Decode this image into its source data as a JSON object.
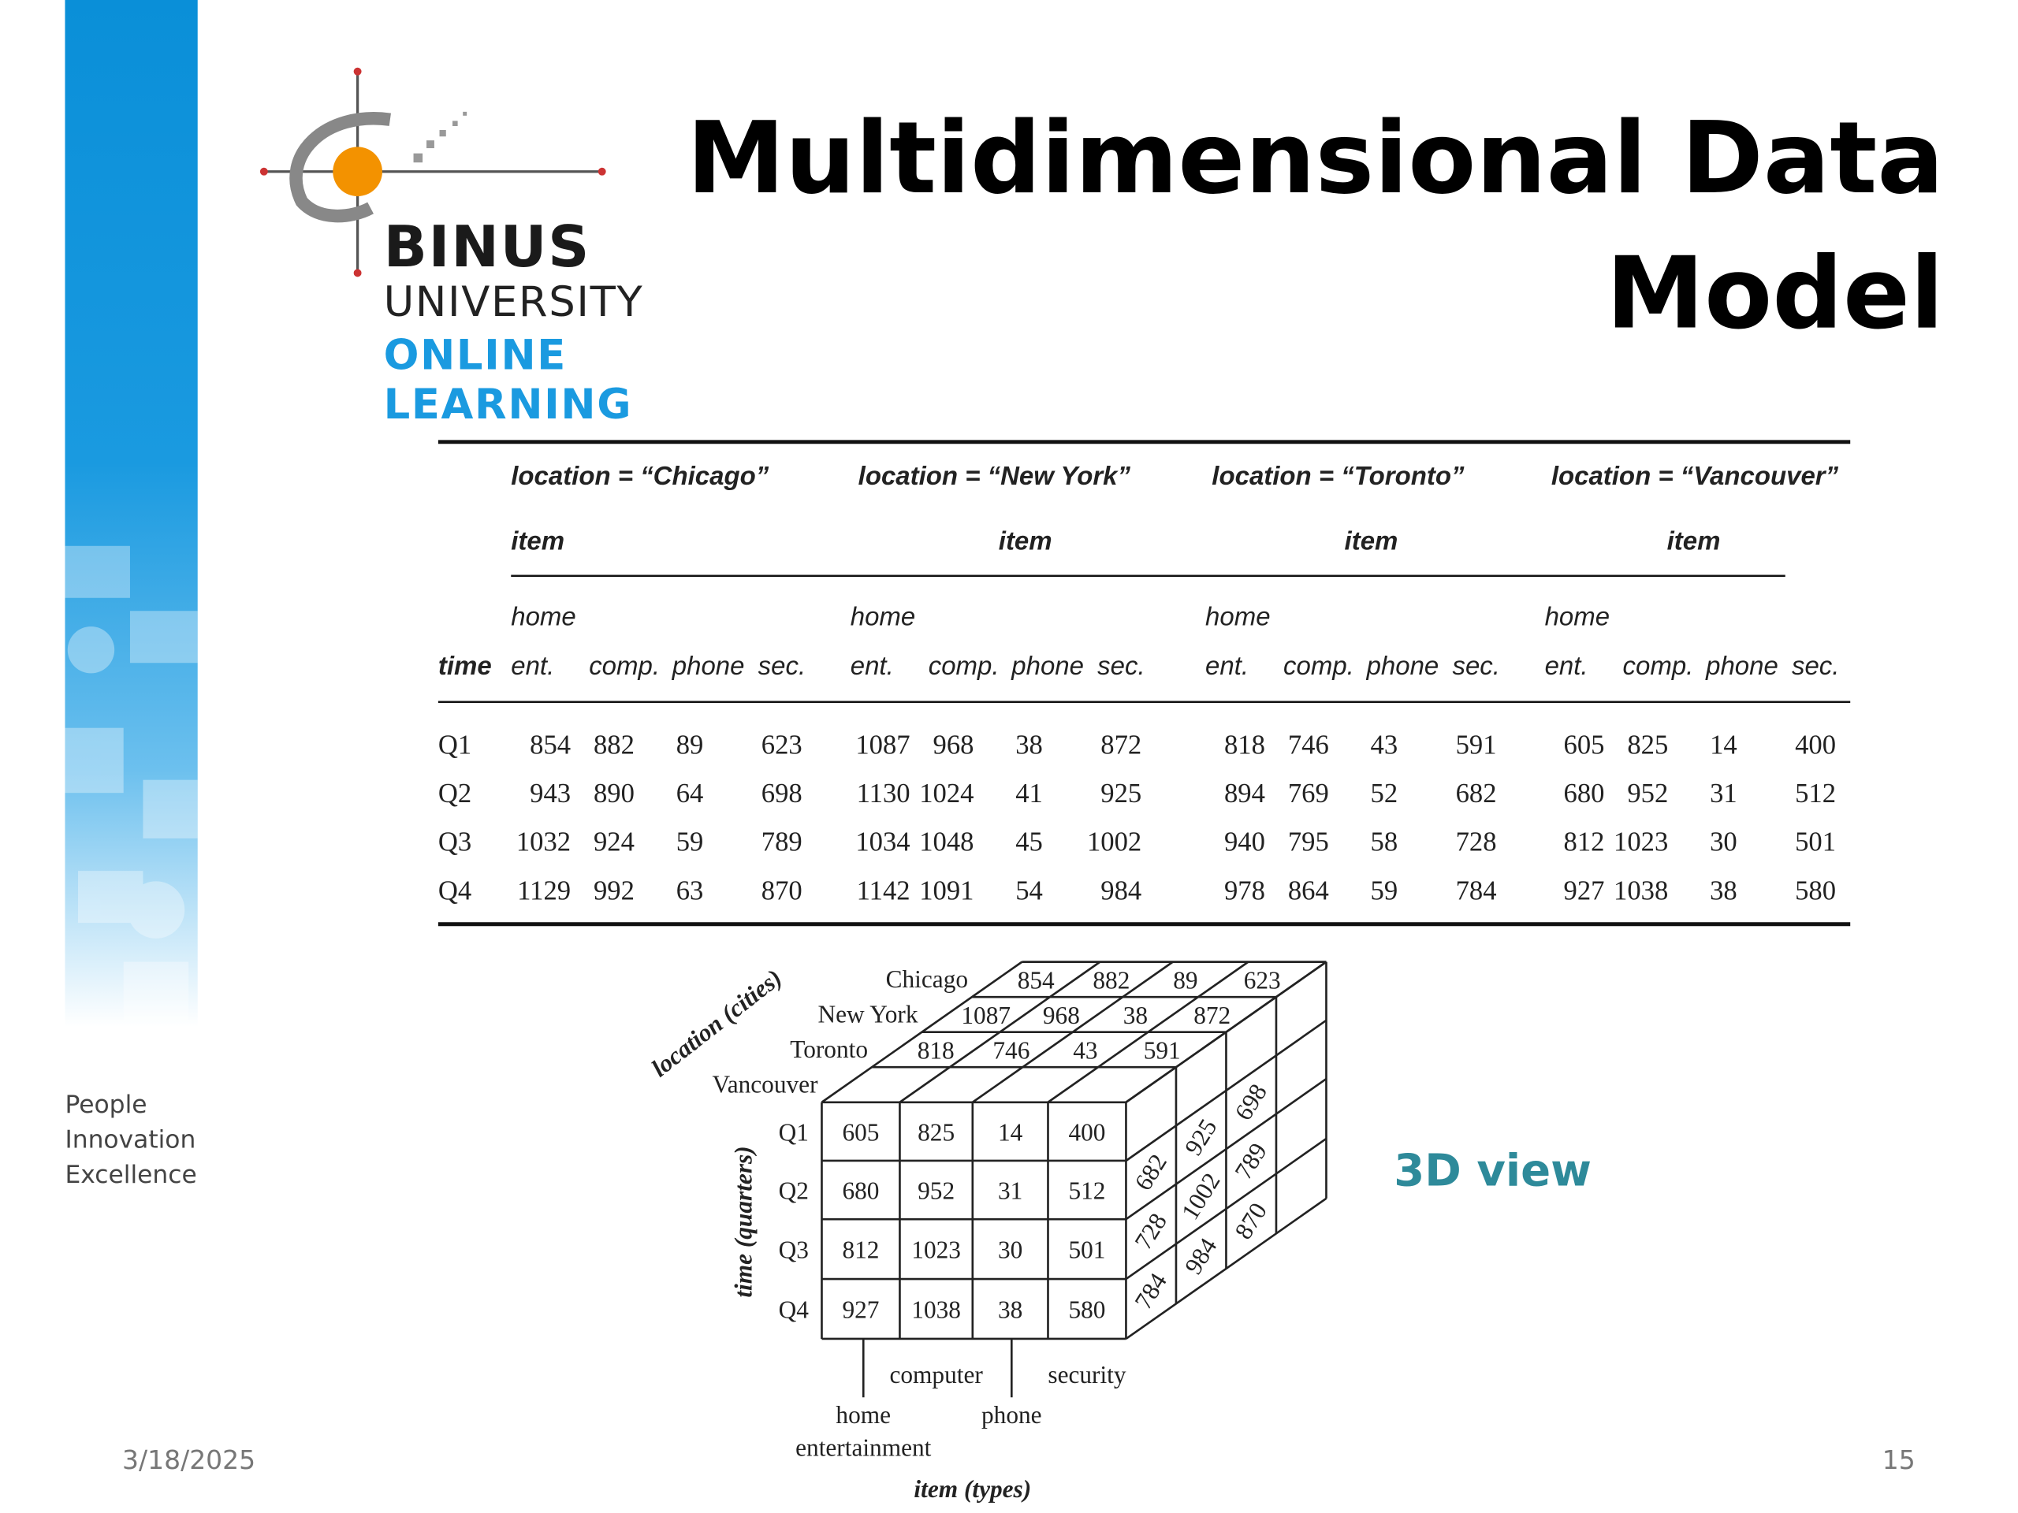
{
  "logo": {
    "lines": [
      "BINUS",
      "UNIVERSITY",
      "ONLINE",
      "LEARNING"
    ]
  },
  "title_lines": [
    "Multidimensional Data",
    "Model"
  ],
  "tagline": [
    "People",
    "Innovation",
    "Excellence"
  ],
  "footer": {
    "date": "3/18/2025",
    "page": "15"
  },
  "table": {
    "groups": [
      {
        "location": "location = “Chicago”",
        "item": "item",
        "home": "home",
        "columns": [
          "ent.",
          "comp.",
          "phone",
          "sec."
        ]
      },
      {
        "location": "location = “New York”",
        "item": "item",
        "home": "home",
        "columns": [
          "ent.",
          "comp.",
          "phone",
          "sec."
        ]
      },
      {
        "location": "location = “Toronto”",
        "item": "item",
        "home": "home",
        "columns": [
          "ent.",
          "comp.",
          "phone",
          "sec."
        ]
      },
      {
        "location": "location = “Vancouver”",
        "item": "item",
        "home": "home",
        "columns": [
          "ent.",
          "comp.",
          "phone",
          "sec."
        ]
      }
    ],
    "time_header": "time",
    "rows": [
      {
        "label": "Q1",
        "values": [
          854,
          882,
          89,
          623,
          1087,
          968,
          38,
          872,
          818,
          746,
          43,
          591,
          605,
          825,
          14,
          400
        ]
      },
      {
        "label": "Q2",
        "values": [
          943,
          890,
          64,
          698,
          1130,
          1024,
          41,
          925,
          894,
          769,
          52,
          682,
          680,
          952,
          31,
          512
        ]
      },
      {
        "label": "Q3",
        "values": [
          1032,
          924,
          59,
          789,
          1034,
          1048,
          45,
          1002,
          940,
          795,
          58,
          728,
          812,
          1023,
          30,
          501
        ]
      },
      {
        "label": "Q4",
        "values": [
          1129,
          992,
          63,
          870,
          1142,
          1091,
          54,
          984,
          978,
          864,
          59,
          784,
          927,
          1038,
          38,
          580
        ]
      }
    ]
  },
  "cube": {
    "location_axis": "location (cities)",
    "time_axis": "time (quarters)",
    "item_axis": "item (types)",
    "cities": [
      "Chicago",
      "New York",
      "Toronto",
      "Vancouver"
    ],
    "quarters": [
      "Q1",
      "Q2",
      "Q3",
      "Q4"
    ],
    "front": [
      [
        605,
        825,
        14,
        400
      ],
      [
        680,
        952,
        31,
        512
      ],
      [
        812,
        1023,
        30,
        501
      ],
      [
        927,
        1038,
        38,
        580
      ]
    ],
    "top": [
      [
        854,
        882,
        89,
        623
      ],
      [
        1087,
        968,
        38,
        872
      ],
      [
        818,
        746,
        43,
        591
      ]
    ],
    "side": [
      [
        698,
        789,
        870
      ],
      [
        925,
        1002,
        984
      ],
      [
        682,
        728,
        784
      ]
    ],
    "items": [
      "home",
      "entertainment",
      "computer",
      "phone",
      "security"
    ],
    "caption": "3D view"
  }
}
